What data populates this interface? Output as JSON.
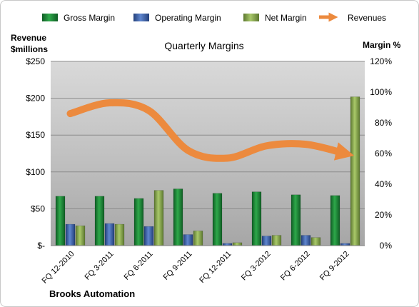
{
  "chart_data": {
    "type": "bar",
    "title": "Quarterly Margins",
    "company": "Brooks Automation",
    "categories": [
      "FQ 12-2010",
      "FQ 3-2011",
      "FQ 6-2011",
      "FQ 9-2011",
      "FQ 12-2011",
      "FQ 3-2012",
      "FQ 6-2012",
      "FQ 9-2012"
    ],
    "left_axis": {
      "label_line1": "Revenue",
      "label_line2": "$millions",
      "min": 0,
      "max": 250,
      "step": 50,
      "tick_labels": [
        "$-",
        "$50",
        "$100",
        "$150",
        "$200",
        "$250"
      ]
    },
    "right_axis": {
      "label": "Margin %",
      "min": 0,
      "max": 120,
      "step": 20,
      "tick_labels": [
        "0%",
        "20%",
        "40%",
        "60%",
        "80%",
        "100%",
        "120%"
      ]
    },
    "series": [
      {
        "name": "Gross Margin",
        "kind": "bar",
        "axis": "left",
        "color": "#1e8a3c",
        "values": [
          67,
          67,
          64,
          77,
          71,
          73,
          69,
          68
        ]
      },
      {
        "name": "Operating Margin",
        "kind": "bar",
        "axis": "left",
        "color": "#3f64a8",
        "values": [
          29,
          30,
          26,
          15,
          3,
          13,
          14,
          3
        ]
      },
      {
        "name": "Net Margin",
        "kind": "bar",
        "axis": "left",
        "color": "#8fae52",
        "values": [
          27,
          29,
          75,
          20,
          4,
          14,
          11,
          202
        ]
      },
      {
        "name": "Revenues",
        "kind": "line-arrow",
        "axis": "right",
        "color": "#ec8a3e",
        "values": [
          86,
          93,
          88,
          62,
          57,
          65,
          66,
          60
        ]
      }
    ],
    "grid": true,
    "legend_position": "top"
  }
}
